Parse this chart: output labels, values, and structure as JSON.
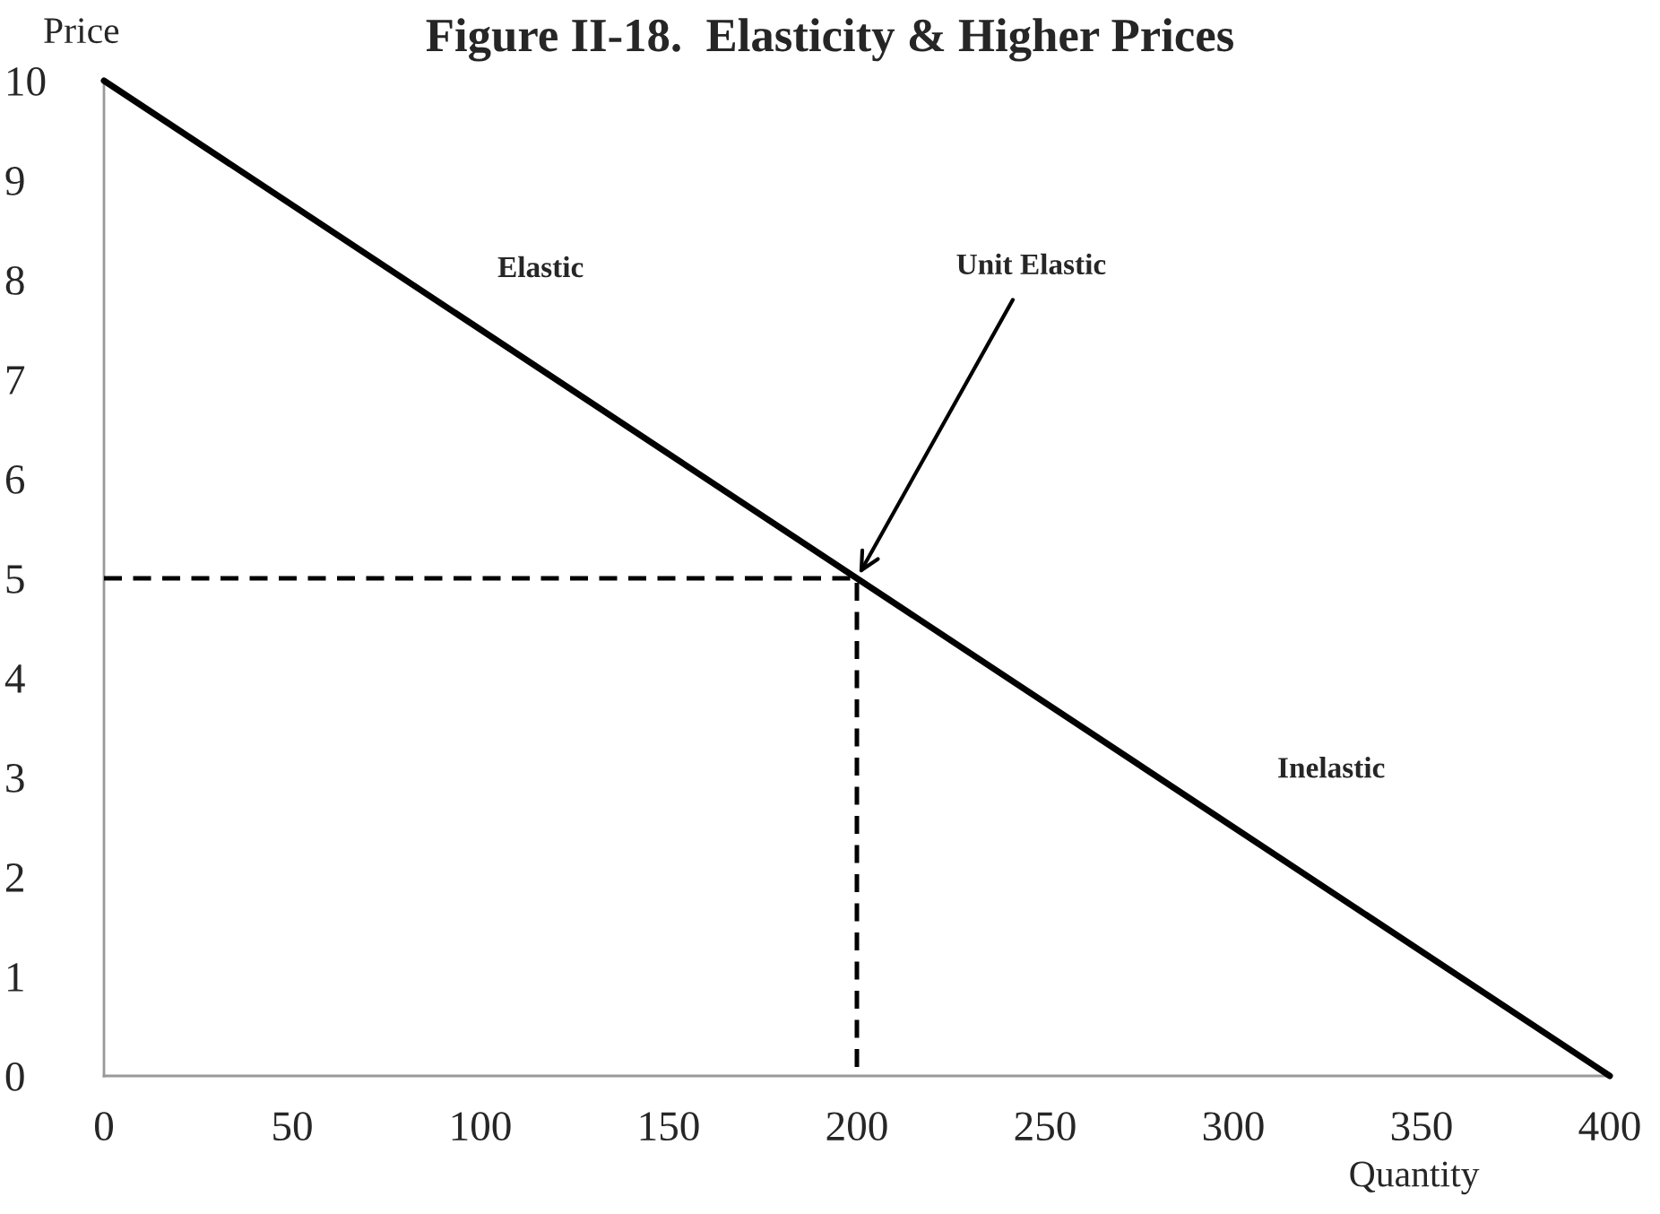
{
  "chart_data": {
    "type": "line",
    "title": "Figure II-18.  Elasticity & Higher Prices",
    "xlabel": "Quantity",
    "ylabel": "Price",
    "series": [
      {
        "x": [
          0,
          400
        ],
        "values": [
          10,
          0
        ],
        "color": "#000000",
        "line_style": "solid"
      },
      {
        "x": [
          0,
          200,
          200
        ],
        "values": [
          5,
          5,
          0
        ],
        "color": "#000000",
        "line_style": "dashed"
      }
    ],
    "annotations": [
      "Elastic",
      {
        "text": "Unit Elastic",
        "x": 200,
        "y": 5
      },
      "Inelastic"
    ],
    "xlim": [
      0,
      400
    ],
    "ylim": [
      0,
      10
    ],
    "xticks": [
      0,
      50,
      100,
      150,
      200,
      250,
      300,
      350,
      400
    ],
    "yticks": [
      0,
      1,
      2,
      3,
      4,
      5,
      6,
      7,
      8,
      9,
      10
    ],
    "grid": false,
    "legend": false,
    "marker": "none"
  }
}
